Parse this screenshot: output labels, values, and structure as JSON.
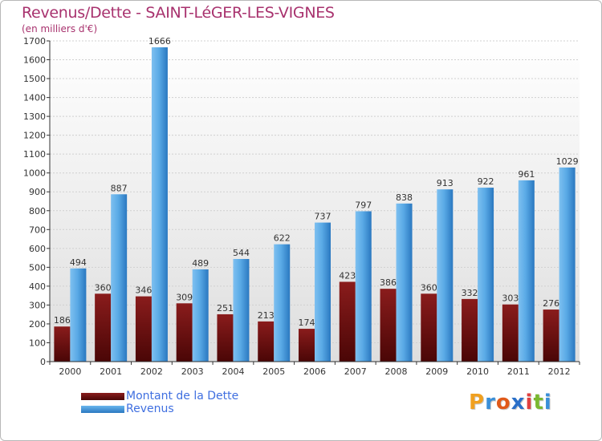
{
  "chart_data": {
    "type": "bar",
    "title": "Revenus/Dette - SAINT-LéGER-LES-VIGNES",
    "subtitle": "(en milliers d'€)",
    "categories": [
      "2000",
      "2001",
      "2002",
      "2003",
      "2004",
      "2005",
      "2006",
      "2007",
      "2008",
      "2009",
      "2010",
      "2011",
      "2012"
    ],
    "series": [
      {
        "name": "Montant de la Dette",
        "color": "#7a1212",
        "values": [
          186,
          360,
          346,
          309,
          251,
          213,
          174,
          423,
          386,
          360,
          332,
          303,
          276
        ]
      },
      {
        "name": "Revenus",
        "color": "#3d97dd",
        "values": [
          494,
          887,
          1666,
          489,
          544,
          622,
          737,
          797,
          838,
          913,
          922,
          961,
          1029
        ]
      }
    ],
    "ylim": [
      0,
      1700
    ],
    "yticks": [
      0,
      100,
      200,
      300,
      400,
      500,
      600,
      700,
      800,
      900,
      1000,
      1100,
      1200,
      1300,
      1400,
      1500,
      1600,
      1700
    ],
    "grid": true,
    "legend_position": "bottom-left"
  },
  "logo": {
    "text": "Proxiti",
    "letter_colors": [
      "#f0a020",
      "#3a8fd8",
      "#e05a1a",
      "#2a6fc8",
      "#e04040",
      "#7ab830",
      "#3a8fd8"
    ]
  }
}
